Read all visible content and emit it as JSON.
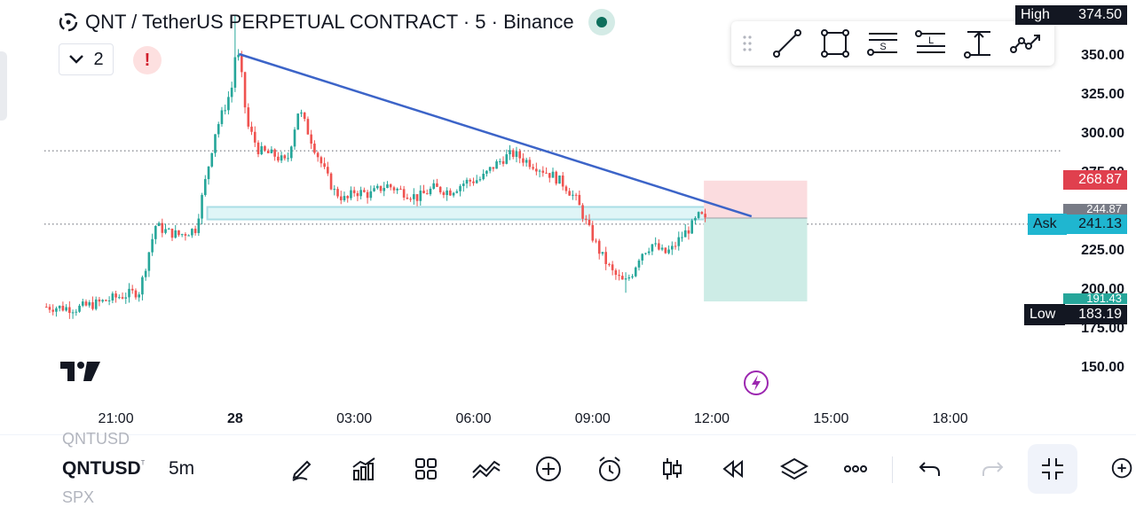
{
  "header": {
    "title": "QNT / TetherUS PERPETUAL CONTRACT · 5 · Binance",
    "collapse_count": "2",
    "alert_label": "!"
  },
  "bottom_bar": {
    "symbol_above": "QNTUSD",
    "symbol": "QNTUSD",
    "symbol_mark": "ᵀ",
    "timeframe": "5m",
    "symbol_below": "SPX",
    "icons": [
      "pencil-icon",
      "bar-chart-icon",
      "grid-icon",
      "indicator-wave-icon",
      "plus-circle-icon",
      "alarm-icon",
      "candles-icon",
      "replay-icon",
      "layers-icon",
      "more-icon",
      "undo-icon",
      "redo-icon",
      "collapse-icon",
      "zoom-in-icon"
    ]
  },
  "drawing_toolbar": {
    "tools": [
      "trend-line-icon",
      "rectangle-icon",
      "short-position-icon",
      "long-position-icon",
      "price-range-icon",
      "path-icon"
    ],
    "short_letter": "S",
    "long_letter": "L"
  },
  "price_labels": {
    "high_label": "High",
    "high_value": "374.50",
    "ask_label": "Ask",
    "ask_value": "241.13",
    "low_label": "Low",
    "low_value": "183.19",
    "stop_value": "268.87",
    "entry_value_partial": "244.87",
    "target_value_partial": "191.43"
  },
  "colors": {
    "up": "#26a69a",
    "down": "#ef5350",
    "trendline": "#3c64c8",
    "zone_fill": "#dff5f7",
    "zone_border": "#a9dde5",
    "stop_fill": "#fbdcdf",
    "target_fill": "#cdece6",
    "ask": "#1fb6d0",
    "stop_label": "#e0404e"
  },
  "chart_data": {
    "type": "candlestick",
    "interval": "5m",
    "y_ticks": [
      150,
      175,
      200,
      225,
      250,
      275,
      300,
      325,
      350
    ],
    "y_tick_labels": [
      "150.00",
      "175.00",
      "200.00",
      "225.00",
      "250.00",
      "275.00",
      "300.00",
      "325.00",
      "350.00"
    ],
    "ylim": [
      140,
      380
    ],
    "x_ticks": [
      "21:00",
      "28",
      "03:00",
      "06:00",
      "09:00",
      "12:00",
      "15:00",
      "18:00"
    ],
    "x_tick_hours": [
      21,
      24,
      27,
      30,
      33,
      36,
      39,
      42
    ],
    "x_range_hours": [
      19.2,
      44.8
    ],
    "series_hours": [
      19.25,
      35.9
    ],
    "close_path": [
      [
        19.25,
        188
      ],
      [
        20.0,
        187
      ],
      [
        20.5,
        190
      ],
      [
        21.0,
        194
      ],
      [
        21.3,
        196
      ],
      [
        21.6,
        198
      ],
      [
        21.8,
        220
      ],
      [
        22.0,
        240
      ],
      [
        22.3,
        236
      ],
      [
        22.6,
        234
      ],
      [
        23.0,
        238
      ],
      [
        23.2,
        262
      ],
      [
        23.5,
        300
      ],
      [
        23.8,
        320
      ],
      [
        24.0,
        335
      ],
      [
        24.1,
        350
      ],
      [
        24.3,
        305
      ],
      [
        24.6,
        288
      ],
      [
        25.0,
        285
      ],
      [
        25.3,
        280
      ],
      [
        25.6,
        315
      ],
      [
        26.0,
        290
      ],
      [
        26.3,
        272
      ],
      [
        26.5,
        262
      ],
      [
        26.8,
        256
      ],
      [
        27.0,
        262
      ],
      [
        27.4,
        260
      ],
      [
        27.8,
        266
      ],
      [
        28.2,
        262
      ],
      [
        28.6,
        258
      ],
      [
        29.0,
        264
      ],
      [
        29.4,
        262
      ],
      [
        29.8,
        268
      ],
      [
        30.2,
        270
      ],
      [
        30.5,
        278
      ],
      [
        30.8,
        284
      ],
      [
        31.0,
        286
      ],
      [
        31.3,
        282
      ],
      [
        31.6,
        278
      ],
      [
        32.0,
        272
      ],
      [
        32.3,
        266
      ],
      [
        32.6,
        256
      ],
      [
        32.9,
        238
      ],
      [
        33.2,
        222
      ],
      [
        33.5,
        210
      ],
      [
        33.8,
        203
      ],
      [
        34.0,
        210
      ],
      [
        34.2,
        222
      ],
      [
        34.5,
        228
      ],
      [
        34.8,
        222
      ],
      [
        35.0,
        225
      ],
      [
        35.2,
        232
      ],
      [
        35.5,
        240
      ],
      [
        35.7,
        247
      ],
      [
        35.8,
        244
      ],
      [
        35.9,
        241
      ]
    ],
    "trendline": [
      [
        24.1,
        350
      ],
      [
        37.0,
        246
      ]
    ],
    "horizontal_zone": {
      "x": [
        23.3,
        36.9
      ],
      "y": [
        244,
        252
      ]
    },
    "dotted_levels": [
      288,
      241
    ],
    "short_position": {
      "x": [
        35.8,
        38.4
      ],
      "stop": 268.87,
      "entry": 244.87,
      "target": 191.43
    },
    "high": 374.5,
    "low": 183.19,
    "ask": 241.13
  }
}
